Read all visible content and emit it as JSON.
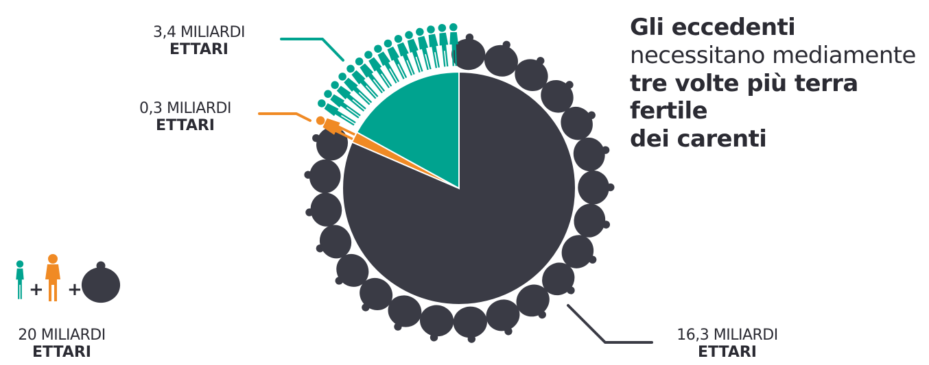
{
  "chart_data": {
    "type": "pie",
    "categories": [
      "eccedenti",
      "normali",
      "carenti"
    ],
    "values": [
      16.3,
      0.3,
      3.4
    ],
    "total": 20,
    "unit": "miliardi ettari",
    "labels": [
      {
        "value": "16,3 MILIARDI",
        "unit": "ETTARI"
      },
      {
        "value": "0,3 MILIARDI",
        "unit": "ETTARI"
      },
      {
        "value": "3,4 MILIARDI",
        "unit": "ETTARI"
      }
    ],
    "total_label": {
      "value": "20 MILIARDI",
      "unit": "ETTARI"
    },
    "colors": {
      "eccedenti": "#3a3b45",
      "normali": "#f08a24",
      "carenti": "#00a38f"
    }
  },
  "headline": {
    "line1": "Gli eccedenti",
    "line2": "necessitano mediamente",
    "line3": "tre volte più terra fertile",
    "line4": "dei carenti"
  },
  "legend": {
    "plus": "+"
  }
}
